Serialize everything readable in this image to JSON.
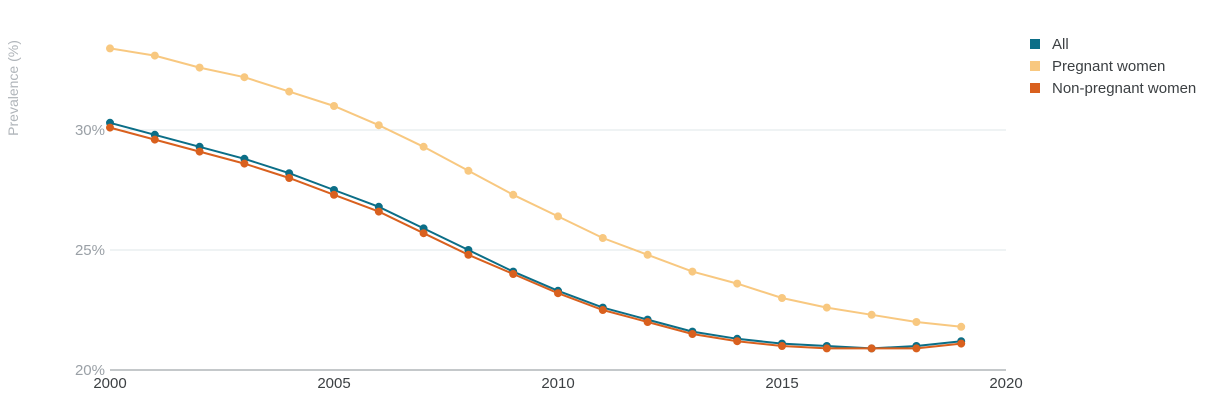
{
  "chart_data": {
    "type": "line",
    "title": "",
    "xlabel": "",
    "ylabel": "Prevalence (%)",
    "xlim": [
      2000,
      2020
    ],
    "ylim": [
      20,
      35
    ],
    "x_ticks": [
      2000,
      2005,
      2010,
      2015,
      2020
    ],
    "y_ticks": [
      20,
      25,
      30
    ],
    "y_tick_labels": [
      "20%",
      "25%",
      "30%"
    ],
    "grid": "horizontal",
    "legend_position": "top-right",
    "x": [
      2000,
      2001,
      2002,
      2003,
      2004,
      2005,
      2006,
      2007,
      2008,
      2009,
      2010,
      2011,
      2012,
      2013,
      2014,
      2015,
      2016,
      2017,
      2018,
      2019
    ],
    "series": [
      {
        "name": "All",
        "color": "#0b6e87",
        "values": [
          30.3,
          29.8,
          29.3,
          28.8,
          28.2,
          27.5,
          26.8,
          25.9,
          25.0,
          24.1,
          23.3,
          22.6,
          22.1,
          21.6,
          21.3,
          21.1,
          21.0,
          20.9,
          21.0,
          21.2
        ]
      },
      {
        "name": "Pregnant women",
        "color": "#f8c880",
        "values": [
          33.4,
          33.1,
          32.6,
          32.2,
          31.6,
          31.0,
          30.2,
          29.3,
          28.3,
          27.3,
          26.4,
          25.5,
          24.8,
          24.1,
          23.6,
          23.0,
          22.6,
          22.3,
          22.0,
          21.8
        ]
      },
      {
        "name": "Non-pregnant women",
        "color": "#d9601e",
        "values": [
          30.1,
          29.6,
          29.1,
          28.6,
          28.0,
          27.3,
          26.6,
          25.7,
          24.8,
          24.0,
          23.2,
          22.5,
          22.0,
          21.5,
          21.2,
          21.0,
          20.9,
          20.9,
          20.9,
          21.1
        ]
      }
    ]
  }
}
